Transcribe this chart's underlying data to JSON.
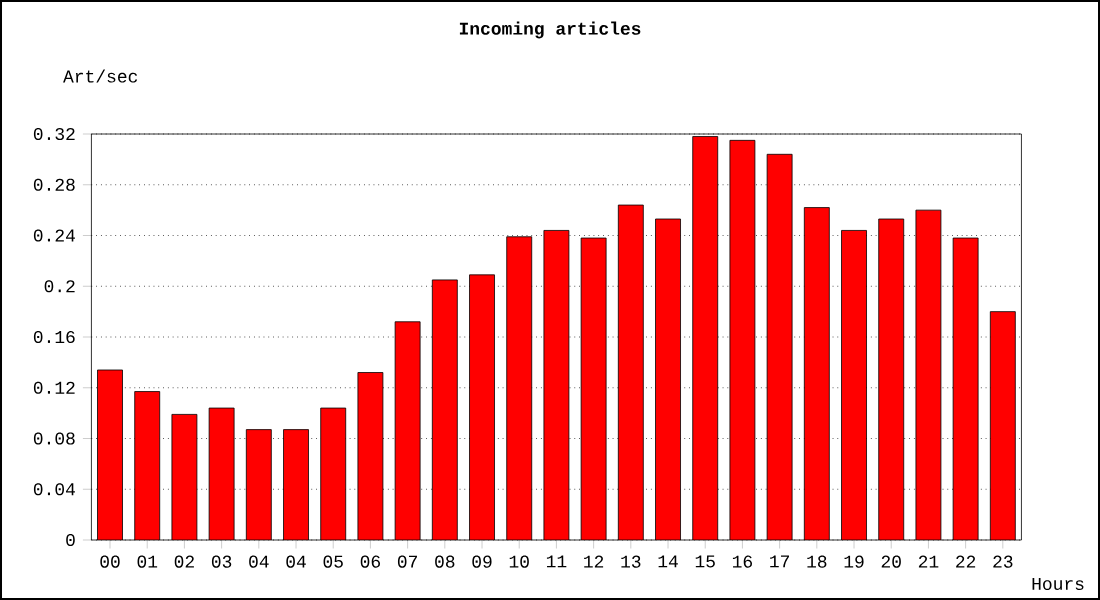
{
  "chart_data": {
    "type": "bar",
    "title": "Incoming articles",
    "ylabel": "Art/sec",
    "xlabel": "Hours",
    "categories": [
      "00",
      "01",
      "02",
      "03",
      "04",
      "04",
      "05",
      "06",
      "07",
      "08",
      "09",
      "10",
      "11",
      "12",
      "13",
      "14",
      "15",
      "16",
      "17",
      "18",
      "19",
      "20",
      "21",
      "22",
      "23"
    ],
    "values": [
      0.134,
      0.117,
      0.099,
      0.104,
      0.087,
      0.087,
      0.104,
      0.132,
      0.172,
      0.205,
      0.209,
      0.239,
      0.244,
      0.238,
      0.264,
      0.253,
      0.318,
      0.315,
      0.304,
      0.262,
      0.244,
      0.253,
      0.26,
      0.238,
      0.18
    ],
    "color": "#ff0000",
    "ylim": [
      0,
      0.32
    ],
    "yticks": [
      0,
      0.04,
      0.08,
      0.12,
      0.16,
      {
        "value": 0.2,
        "label": "0.2"
      },
      0.24,
      0.28,
      0.32
    ],
    "grid": "y"
  }
}
